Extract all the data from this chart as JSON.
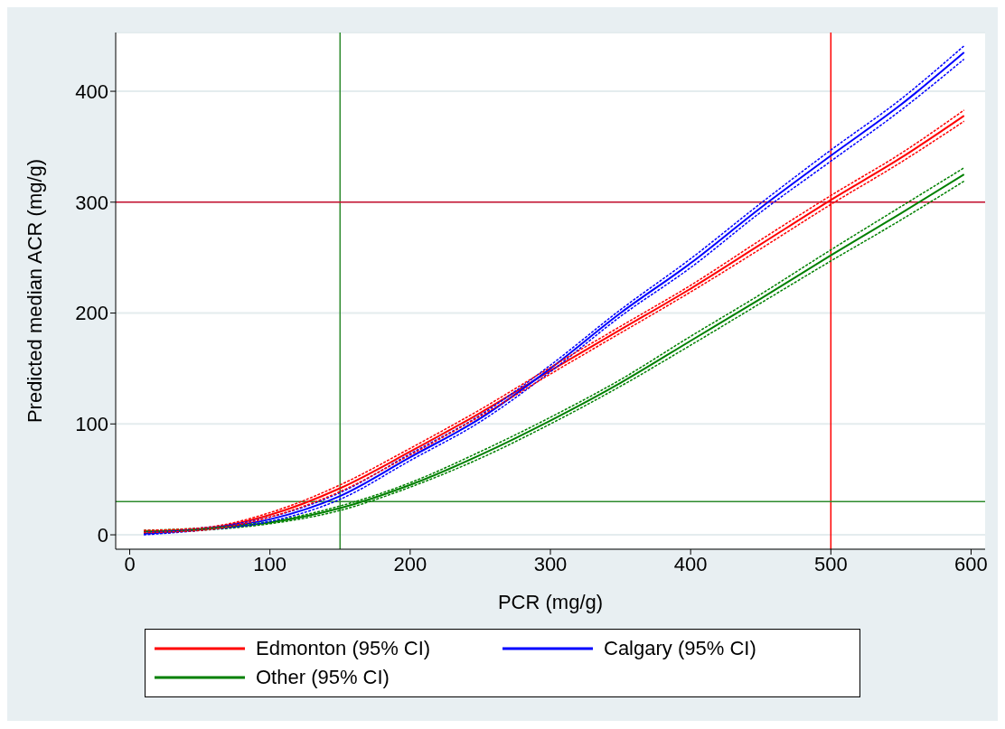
{
  "chart_data": {
    "type": "line",
    "xlabel": "PCR (mg/g)",
    "ylabel": "Predicted median ACR (mg/g)",
    "x": [
      10,
      50,
      100,
      150,
      200,
      250,
      300,
      350,
      400,
      450,
      500,
      550,
      595
    ],
    "series": [
      {
        "name": "Edmonton (95% CI)",
        "color": "#ff0000",
        "values": [
          3,
          5,
          18,
          42,
          75,
          110,
          148,
          185,
          222,
          262,
          302,
          340,
          378
        ]
      },
      {
        "color": "#ff0000",
        "line_style": "dashed",
        "values": [
          2,
          4,
          16,
          39,
          72,
          107,
          145,
          182,
          219,
          258,
          298,
          336,
          373
        ]
      },
      {
        "color": "#ff0000",
        "line_style": "dashed",
        "values": [
          4,
          6,
          20,
          45,
          78,
          113,
          151,
          188,
          225,
          266,
          306,
          344,
          383
        ]
      },
      {
        "name": "Calgary (95% CI)",
        "color": "#0000ff",
        "values": [
          1,
          5,
          14,
          35,
          70,
          105,
          150,
          200,
          245,
          295,
          342,
          388,
          435
        ]
      },
      {
        "color": "#0000ff",
        "line_style": "dashed",
        "values": [
          0,
          4,
          12,
          32,
          67,
          102,
          147,
          197,
          241,
          291,
          337,
          383,
          429
        ]
      },
      {
        "color": "#0000ff",
        "line_style": "dashed",
        "values": [
          2,
          6,
          16,
          38,
          73,
          108,
          153,
          203,
          249,
          299,
          347,
          393,
          441
        ]
      },
      {
        "name": "Other (95% CI)",
        "color": "#008000",
        "values": [
          3,
          5,
          11,
          24,
          45,
          72,
          103,
          137,
          175,
          213,
          252,
          290,
          325
        ]
      },
      {
        "color": "#008000",
        "line_style": "dashed",
        "values": [
          2,
          4,
          10,
          22,
          43,
          69,
          100,
          134,
          171,
          209,
          247,
          284,
          319
        ]
      },
      {
        "color": "#008000",
        "line_style": "dashed",
        "values": [
          4,
          6,
          12,
          26,
          47,
          75,
          106,
          140,
          179,
          217,
          257,
          296,
          331
        ]
      }
    ],
    "xlim": [
      -10,
      610
    ],
    "ylim": [
      -13,
      453
    ],
    "xticks": [
      0,
      100,
      200,
      300,
      400,
      500,
      600
    ],
    "yticks": [
      0,
      100,
      200,
      300,
      400
    ],
    "ref_lines": [
      {
        "axis": "x",
        "value": 150,
        "color": "#2e8b2e"
      },
      {
        "axis": "x",
        "value": 500,
        "color": "#ff0000"
      },
      {
        "axis": "y",
        "value": 300,
        "color": "#c8102e"
      },
      {
        "axis": "y",
        "value": 30,
        "color": "#2e8b2e"
      }
    ],
    "grid": "y",
    "legend": "bottom",
    "marker": "none",
    "line_style": "solid"
  }
}
